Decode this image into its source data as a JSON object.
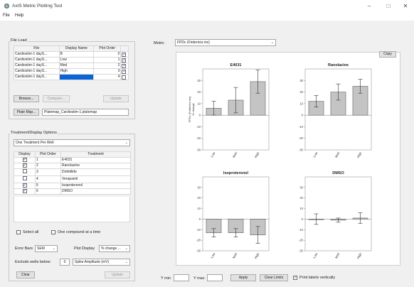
{
  "window": {
    "title": "AxIS Metric Plotting Tool",
    "controls": [
      "–",
      "□",
      "✕"
    ]
  },
  "menu": [
    "File",
    "Help"
  ],
  "file_load": {
    "label": "File Load",
    "headers": [
      "File",
      "Display Name",
      "Plot Order"
    ],
    "rows": [
      {
        "file": "Cardiostim-1 dayS...",
        "name": "B",
        "order": "0",
        "checked": true
      },
      {
        "file": "Cardiostim-1 dayS...",
        "name": "Low",
        "order": "1",
        "checked": true
      },
      {
        "file": "Cardiostim-1 dayS...",
        "name": "Med",
        "order": "2",
        "checked": true
      },
      {
        "file": "Cardiostim-1 dayS...",
        "name": "High",
        "order": "3",
        "checked": true
      },
      {
        "file": "Cardiostim-1 dayS...",
        "name": "",
        "order": "4",
        "checked": false
      }
    ],
    "browse": "Browse...",
    "compare": "Compare...",
    "update": "Update",
    "plate_map_button": "Plate Map...",
    "plate_map_value": "Platemap_Cardiostim-1.platemap"
  },
  "treatment": {
    "label": "Treatment/Display Options",
    "mode": "One Treatment Per Well",
    "headers": [
      "Display",
      "Plot Order",
      "Treatment"
    ],
    "rows": [
      {
        "display": true,
        "order": "1",
        "name": "E4031"
      },
      {
        "display": true,
        "order": "2",
        "name": "Ranolazine"
      },
      {
        "display": false,
        "order": "3",
        "name": "Dofetilide"
      },
      {
        "display": false,
        "order": "4",
        "name": "Verapamil"
      },
      {
        "display": true,
        "order": "5",
        "name": "Isoproterenol"
      },
      {
        "display": true,
        "order": "6",
        "name": "DMSO"
      }
    ],
    "select_all": "Select all",
    "one_compound": "One compound at a time",
    "error_bars_label": "Error Bars",
    "error_bars_value": "SEM",
    "plot_display_label": "Plot Display",
    "plot_display_value": "% change ...",
    "exclude_label": "Exclude wells below:",
    "exclude_value": "0",
    "exclude_metric": "Spike Amplitude (mV)",
    "clear": "Clear",
    "update": "Update"
  },
  "metric": {
    "label": "Metric",
    "value": "FPDc (Fridericia ms)"
  },
  "copy": "Copy",
  "bottom": {
    "ymin_label": "Y min",
    "ymax_label": "Y max",
    "apply": "Apply",
    "clear_limits": "Clear Limits",
    "print_vertical": "Print labels vertically"
  },
  "chart_data": [
    {
      "type": "bar",
      "title": "E4031",
      "categories": [
        "Low",
        "Med",
        "High"
      ],
      "values": [
        6,
        13,
        29
      ],
      "errors": [
        6,
        11,
        10
      ],
      "ylabel": "FPDc (Fridericia ms)\n% change",
      "ylim": [
        -30,
        40
      ],
      "ticks": [
        -30,
        -20,
        -10,
        0,
        10,
        20,
        30
      ]
    },
    {
      "type": "bar",
      "title": "Ranolazine",
      "categories": [
        "Low",
        "Med",
        "High"
      ],
      "values": [
        12,
        20,
        25
      ],
      "errors": [
        5,
        7,
        6
      ],
      "ylabel": "",
      "ylim": [
        -30,
        40
      ],
      "ticks": [
        -30,
        -20,
        -10,
        0,
        10,
        20,
        30
      ]
    },
    {
      "type": "bar",
      "title": "Isoproterenol",
      "categories": [
        "Low",
        "Med",
        "High"
      ],
      "values": [
        -13,
        -13,
        -15
      ],
      "errors": [
        4,
        4,
        8
      ],
      "ylabel": "",
      "ylim": [
        -30,
        40
      ],
      "ticks": [
        -30,
        -20,
        -10,
        0,
        10,
        20,
        30
      ]
    },
    {
      "type": "bar",
      "title": "DMSO",
      "categories": [
        "Low",
        "Med",
        "High"
      ],
      "values": [
        0,
        -1,
        1
      ],
      "errors": [
        5,
        2,
        5
      ],
      "ylabel": "",
      "ylim": [
        -30,
        40
      ],
      "ticks": [
        -30,
        -20,
        -10,
        0,
        10,
        20,
        30
      ]
    }
  ]
}
